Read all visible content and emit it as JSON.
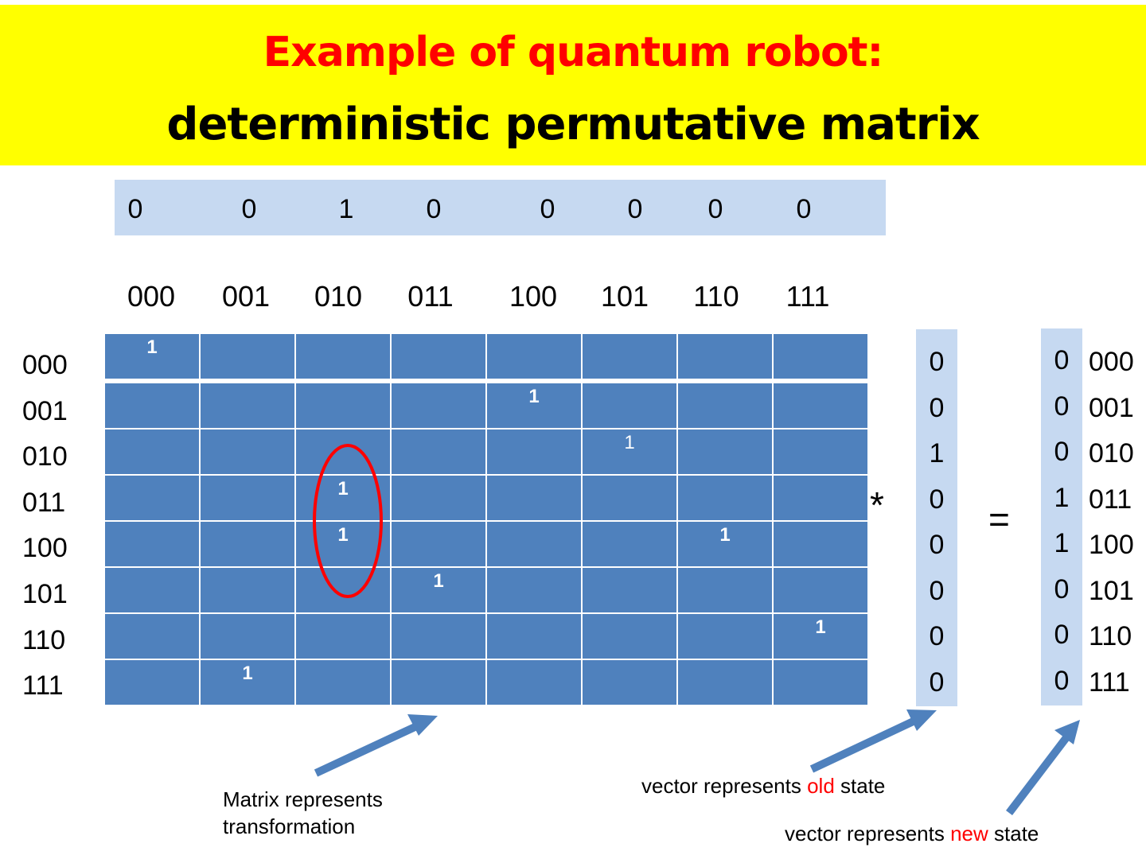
{
  "title": {
    "line1": "Example of quantum robot:",
    "line2": "deterministic permutative matrix"
  },
  "top_vector": [
    "0",
    "0",
    "1",
    "0",
    "0",
    "0",
    "0",
    "0"
  ],
  "state_labels": [
    "000",
    "001",
    "010",
    "011",
    "100",
    "101",
    "110",
    "111"
  ],
  "matrix": [
    [
      "1",
      "",
      "",
      "",
      "",
      "",
      "",
      ""
    ],
    [
      "",
      "",
      "",
      "",
      "1",
      "",
      "",
      ""
    ],
    [
      "",
      "",
      "",
      "",
      "",
      "1",
      "",
      ""
    ],
    [
      "",
      "",
      "1",
      "",
      "",
      "",
      "",
      ""
    ],
    [
      "",
      "",
      "1",
      "",
      "",
      "",
      "1",
      ""
    ],
    [
      "",
      "",
      "",
      "1",
      "",
      "",
      "",
      ""
    ],
    [
      "",
      "",
      "",
      "",
      "",
      "",
      "",
      "1"
    ],
    [
      "",
      "1",
      "",
      "",
      "",
      "",
      "",
      ""
    ]
  ],
  "old_vector": [
    "0",
    "0",
    "1",
    "0",
    "0",
    "0",
    "0",
    "0"
  ],
  "new_vector": [
    "0",
    "0",
    "0",
    "1",
    "1",
    "0",
    "0",
    "0"
  ],
  "operators": {
    "multiply": "*",
    "equals": "="
  },
  "captions": {
    "matrix_line1": "Matrix represents",
    "matrix_line2": "transformation",
    "old_prefix": "vector represents ",
    "old_word": "old",
    "old_suffix": " state",
    "new_prefix": "vector represents ",
    "new_word": "new",
    "new_suffix": " state"
  },
  "colors": {
    "title_bg": "#ffff00",
    "title_red": "#ff0000",
    "cell": "#4f81bd",
    "vector_bg": "#c6d9f1",
    "highlight": "#ff0000",
    "arrow": "#4f81bd"
  }
}
